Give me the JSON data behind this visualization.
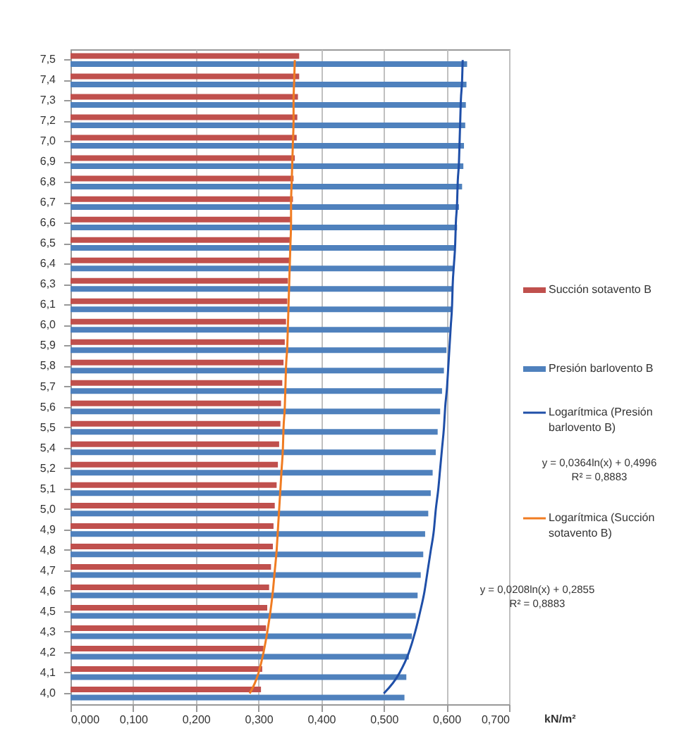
{
  "chart_data": {
    "type": "bar",
    "orientation": "horizontal",
    "categories": [
      "7,5",
      "7,4",
      "7,3",
      "7,2",
      "7,0",
      "6,9",
      "6,8",
      "6,7",
      "6,6",
      "6,5",
      "6,4",
      "6,3",
      "6,1",
      "6,0",
      "5,9",
      "5,8",
      "5,7",
      "5,6",
      "5,5",
      "5,4",
      "5,2",
      "5,1",
      "5,0",
      "4,9",
      "4,8",
      "4,7",
      "4,6",
      "4,5",
      "4,3",
      "4,2",
      "4,1",
      "4,0"
    ],
    "series": [
      {
        "name": "Succión sotavento B",
        "color": "#c0504d",
        "values": [
          0.365,
          0.365,
          0.363,
          0.362,
          0.361,
          0.358,
          0.356,
          0.355,
          0.353,
          0.351,
          0.35,
          0.347,
          0.346,
          0.344,
          0.342,
          0.34,
          0.338,
          0.336,
          0.335,
          0.333,
          0.331,
          0.329,
          0.326,
          0.324,
          0.323,
          0.32,
          0.317,
          0.314,
          0.312,
          0.308,
          0.306,
          0.304
        ]
      },
      {
        "name": "Presión barlovento B",
        "color": "#4f81bd",
        "values": [
          0.633,
          0.632,
          0.631,
          0.63,
          0.628,
          0.627,
          0.625,
          0.62,
          0.617,
          0.614,
          0.611,
          0.61,
          0.608,
          0.605,
          0.6,
          0.596,
          0.593,
          0.59,
          0.586,
          0.583,
          0.578,
          0.575,
          0.571,
          0.566,
          0.563,
          0.559,
          0.554,
          0.551,
          0.545,
          0.54,
          0.536,
          0.533
        ]
      },
      {
        "name": "Logarítmica (Presión barlovento B)",
        "color": "#1f4fa8",
        "type": "line",
        "values": [
          0.626,
          0.625,
          0.623,
          0.622,
          0.621,
          0.62,
          0.618,
          0.617,
          0.615,
          0.614,
          0.612,
          0.61,
          0.609,
          0.607,
          0.605,
          0.603,
          0.601,
          0.598,
          0.596,
          0.593,
          0.59,
          0.587,
          0.583,
          0.58,
          0.575,
          0.57,
          0.565,
          0.558,
          0.55,
          0.54,
          0.525,
          0.5
        ]
      },
      {
        "name": "Logarítmica (Succión sotavento B)",
        "color": "#f07c22",
        "type": "line",
        "values": [
          0.358,
          0.357,
          0.356,
          0.356,
          0.355,
          0.354,
          0.353,
          0.352,
          0.352,
          0.351,
          0.35,
          0.349,
          0.348,
          0.347,
          0.346,
          0.344,
          0.343,
          0.342,
          0.34,
          0.339,
          0.337,
          0.335,
          0.333,
          0.331,
          0.329,
          0.326,
          0.323,
          0.319,
          0.314,
          0.308,
          0.3,
          0.286
        ]
      }
    ],
    "xlabel": "kN/m²",
    "xlim": [
      0,
      0.7
    ],
    "xticks": [
      {
        "value": 0,
        "label": "0,000"
      },
      {
        "value": 0.1,
        "label": "0,100"
      },
      {
        "value": 0.2,
        "label": "0,200"
      },
      {
        "value": 0.3,
        "label": "0,300"
      },
      {
        "value": 0.4,
        "label": "0,400"
      },
      {
        "value": 0.5,
        "label": "0,500"
      },
      {
        "value": 0.6,
        "label": "0,600"
      },
      {
        "value": 0.7,
        "label": "0,700"
      }
    ],
    "grid": "x",
    "legend": "right",
    "annotations": [
      "y = 0,0364ln(x) + 0,4996\nR² = 0,8883",
      "y = 0,0208ln(x) + 0,2855\nR² = 0,8883"
    ]
  }
}
